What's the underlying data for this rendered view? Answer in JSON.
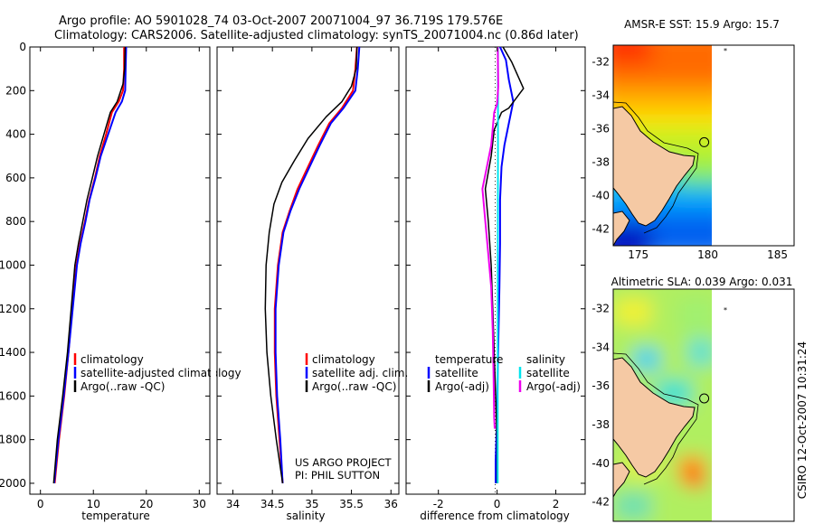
{
  "header": {
    "line1": "Argo profile: AO 5901028_74 03-Oct-2007 20071004_97 36.719S 179.576E",
    "line2": "Climatology: CARS2006. Satellite-adjusted climatology: synTS_20071004.nc (0.86d later)"
  },
  "colors": {
    "climatology": "#ff0000",
    "satellite": "#0000ff",
    "argo": "#000000",
    "sat_salinity": "#00e5ee",
    "argo_salinity": "#ee00ee"
  },
  "chart_data": [
    {
      "type": "line",
      "id": "temperature",
      "xlabel": "temperature",
      "ylabel": "",
      "xlim": [
        -2,
        32
      ],
      "ylim": [
        0,
        2050
      ],
      "y_reversed": true,
      "xticks": [
        0,
        10,
        20,
        30
      ],
      "yticks": [
        0,
        200,
        400,
        600,
        800,
        1000,
        1200,
        1400,
        1600,
        1800,
        2000
      ],
      "legend": [
        "climatology",
        "satellite-adjusted climatology",
        "Argo(..raw -QC)"
      ],
      "series": [
        {
          "name": "climatology",
          "color": "#ff0000",
          "width": 2,
          "points": [
            [
              15.8,
              0
            ],
            [
              15.8,
              100
            ],
            [
              15.6,
              200
            ],
            [
              14.8,
              250
            ],
            [
              13.5,
              300
            ],
            [
              12.4,
              400
            ],
            [
              11.2,
              500
            ],
            [
              10.3,
              600
            ],
            [
              9.2,
              700
            ],
            [
              8.4,
              800
            ],
            [
              7.5,
              900
            ],
            [
              6.8,
              1000
            ],
            [
              6.0,
              1200
            ],
            [
              5.3,
              1400
            ],
            [
              4.5,
              1600
            ],
            [
              3.5,
              1800
            ],
            [
              2.7,
              2000
            ]
          ]
        },
        {
          "name": "satellite-adjusted climatology",
          "color": "#0000ff",
          "width": 2,
          "points": [
            [
              16.2,
              0
            ],
            [
              16.1,
              100
            ],
            [
              16.0,
              200
            ],
            [
              15.4,
              250
            ],
            [
              14.2,
              300
            ],
            [
              12.8,
              400
            ],
            [
              11.4,
              500
            ],
            [
              10.4,
              600
            ],
            [
              9.3,
              700
            ],
            [
              8.5,
              800
            ],
            [
              7.6,
              900
            ],
            [
              6.9,
              1000
            ],
            [
              6.1,
              1200
            ],
            [
              5.3,
              1400
            ],
            [
              4.4,
              1600
            ],
            [
              3.4,
              1800
            ],
            [
              2.6,
              2000
            ]
          ]
        },
        {
          "name": "Argo(..raw -QC)",
          "color": "#000000",
          "width": 1.5,
          "points": [
            [
              16.0,
              0
            ],
            [
              15.9,
              100
            ],
            [
              15.6,
              170
            ],
            [
              14.5,
              250
            ],
            [
              13.2,
              300
            ],
            [
              12.0,
              400
            ],
            [
              10.8,
              500
            ],
            [
              9.8,
              600
            ],
            [
              8.8,
              700
            ],
            [
              8.0,
              800
            ],
            [
              7.2,
              900
            ],
            [
              6.5,
              1000
            ],
            [
              5.8,
              1200
            ],
            [
              5.1,
              1400
            ],
            [
              4.2,
              1600
            ],
            [
              3.2,
              1800
            ],
            [
              2.5,
              2000
            ]
          ]
        }
      ]
    },
    {
      "type": "line",
      "id": "salinity",
      "xlabel": "salinity",
      "xlim": [
        33.8,
        36.1
      ],
      "ylim": [
        0,
        2050
      ],
      "y_reversed": true,
      "xticks": [
        34,
        34.5,
        35,
        35.5,
        36
      ],
      "legend": [
        "climatology",
        "satellite adj. clim.",
        "Argo(..raw -QC)"
      ],
      "annotation": [
        "US ARGO PROJECT",
        "PI: PHIL SUTTON"
      ],
      "series": [
        {
          "name": "climatology",
          "color": "#ff0000",
          "width": 2,
          "points": [
            [
              35.57,
              0
            ],
            [
              35.55,
              100
            ],
            [
              35.52,
              200
            ],
            [
              35.38,
              280
            ],
            [
              35.22,
              350
            ],
            [
              35.08,
              450
            ],
            [
              34.95,
              550
            ],
            [
              34.82,
              650
            ],
            [
              34.72,
              750
            ],
            [
              34.63,
              850
            ],
            [
              34.57,
              1000
            ],
            [
              34.53,
              1200
            ],
            [
              34.53,
              1400
            ],
            [
              34.55,
              1600
            ],
            [
              34.59,
              1800
            ],
            [
              34.63,
              2000
            ]
          ]
        },
        {
          "name": "satellite adj. clim.",
          "color": "#0000ff",
          "width": 2,
          "points": [
            [
              35.6,
              0
            ],
            [
              35.58,
              100
            ],
            [
              35.55,
              200
            ],
            [
              35.4,
              280
            ],
            [
              35.24,
              350
            ],
            [
              35.1,
              450
            ],
            [
              34.97,
              550
            ],
            [
              34.84,
              650
            ],
            [
              34.73,
              750
            ],
            [
              34.64,
              850
            ],
            [
              34.58,
              1000
            ],
            [
              34.54,
              1200
            ],
            [
              34.54,
              1400
            ],
            [
              34.56,
              1600
            ],
            [
              34.6,
              1800
            ],
            [
              34.63,
              2000
            ]
          ]
        },
        {
          "name": "Argo(..raw -QC)",
          "color": "#000000",
          "width": 1.5,
          "points": [
            [
              35.57,
              0
            ],
            [
              35.56,
              100
            ],
            [
              35.5,
              180
            ],
            [
              35.38,
              250
            ],
            [
              35.18,
              320
            ],
            [
              34.95,
              420
            ],
            [
              34.78,
              520
            ],
            [
              34.62,
              620
            ],
            [
              34.52,
              720
            ],
            [
              34.46,
              850
            ],
            [
              34.42,
              1000
            ],
            [
              34.41,
              1200
            ],
            [
              34.43,
              1400
            ],
            [
              34.48,
              1600
            ],
            [
              34.55,
              1800
            ],
            [
              34.63,
              2000
            ]
          ]
        }
      ]
    },
    {
      "type": "line",
      "id": "difference",
      "xlabel": "difference from climatology",
      "xlim": [
        -3.1,
        3.0
      ],
      "ylim": [
        0,
        2050
      ],
      "y_reversed": true,
      "xticks": [
        -2,
        0,
        2
      ],
      "legend_headers": [
        "temperature",
        "salinity"
      ],
      "legend": [
        "satellite",
        "Argo(-adj)",
        "satellite",
        "Argo(-adj)"
      ],
      "series": [
        {
          "name": "temperature satellite",
          "color": "#0000ff",
          "width": 2,
          "points": [
            [
              0.1,
              0
            ],
            [
              0.3,
              60
            ],
            [
              0.4,
              150
            ],
            [
              0.55,
              250
            ],
            [
              0.4,
              350
            ],
            [
              0.25,
              450
            ],
            [
              0.15,
              550
            ],
            [
              0.1,
              700
            ],
            [
              0.1,
              900
            ],
            [
              0.08,
              1100
            ],
            [
              0.05,
              1300
            ],
            [
              0.02,
              1500
            ],
            [
              0,
              1700
            ],
            [
              -0.05,
              1900
            ],
            [
              -0.05,
              2000
            ]
          ]
        },
        {
          "name": "temperature Argo(-adj)",
          "color": "#000000",
          "width": 1.5,
          "points": [
            [
              0.2,
              0
            ],
            [
              0.5,
              70
            ],
            [
              0.9,
              190
            ],
            [
              0.4,
              280
            ],
            [
              0.15,
              300
            ],
            [
              -0.1,
              380
            ],
            [
              -0.2,
              500
            ],
            [
              -0.4,
              650
            ],
            [
              -0.3,
              800
            ],
            [
              -0.2,
              1000
            ],
            [
              -0.15,
              1200
            ],
            [
              -0.1,
              1400
            ],
            [
              -0.05,
              1600
            ],
            [
              0,
              1800
            ],
            [
              0,
              2000
            ]
          ]
        },
        {
          "name": "salinity satellite",
          "color": "#00e5ee",
          "width": 2,
          "points": [
            [
              0.03,
              0
            ],
            [
              0.03,
              500
            ],
            [
              0.02,
              1000
            ],
            [
              0.02,
              1500
            ],
            [
              0.02,
              2000
            ]
          ]
        },
        {
          "name": "salinity Argo(-adj)",
          "color": "#ee00ee",
          "width": 2,
          "points": [
            [
              0.02,
              0
            ],
            [
              0.04,
              180
            ],
            [
              0,
              260
            ],
            [
              -0.1,
              300
            ],
            [
              -0.2,
              450
            ],
            [
              -0.35,
              550
            ],
            [
              -0.5,
              650
            ],
            [
              -0.4,
              800
            ],
            [
              -0.3,
              950
            ],
            [
              -0.2,
              1100
            ],
            [
              -0.15,
              1300
            ],
            [
              -0.12,
              1500
            ],
            [
              -0.1,
              1700
            ],
            [
              -0.08,
              1750
            ]
          ]
        }
      ]
    },
    {
      "type": "heatmap",
      "id": "sst_map",
      "title": "AMSR-E SST: 15.9  Argo: 15.7",
      "xlim": [
        173.2,
        186.2
      ],
      "ylim": [
        -43,
        -31
      ],
      "xticks": [
        175,
        180,
        185
      ],
      "yticks": [
        -32,
        -34,
        -36,
        -38,
        -40,
        -42
      ],
      "argo_position": [
        179.576,
        -36.719
      ]
    },
    {
      "type": "heatmap",
      "id": "sla_map",
      "title": "Altimetric SLA: 0.039  Argo: 0.031",
      "xlim": [
        173.2,
        186.2
      ],
      "ylim": [
        -43,
        -31
      ],
      "xticks": [
        175,
        180,
        185
      ],
      "yticks": [
        -32,
        -34,
        -36,
        -38,
        -40,
        -42
      ],
      "argo_position": [
        179.576,
        -36.719
      ]
    }
  ],
  "footer": {
    "stamp": "CSIRO 12-Oct-2007 10:31:24"
  }
}
